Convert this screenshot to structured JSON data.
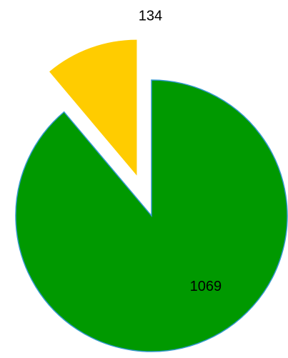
{
  "chart_data": {
    "type": "pie",
    "values": [
      1069,
      134
    ],
    "colors": [
      "#009900",
      "#ffcc00"
    ],
    "exploded": [
      false,
      true
    ]
  }
}
